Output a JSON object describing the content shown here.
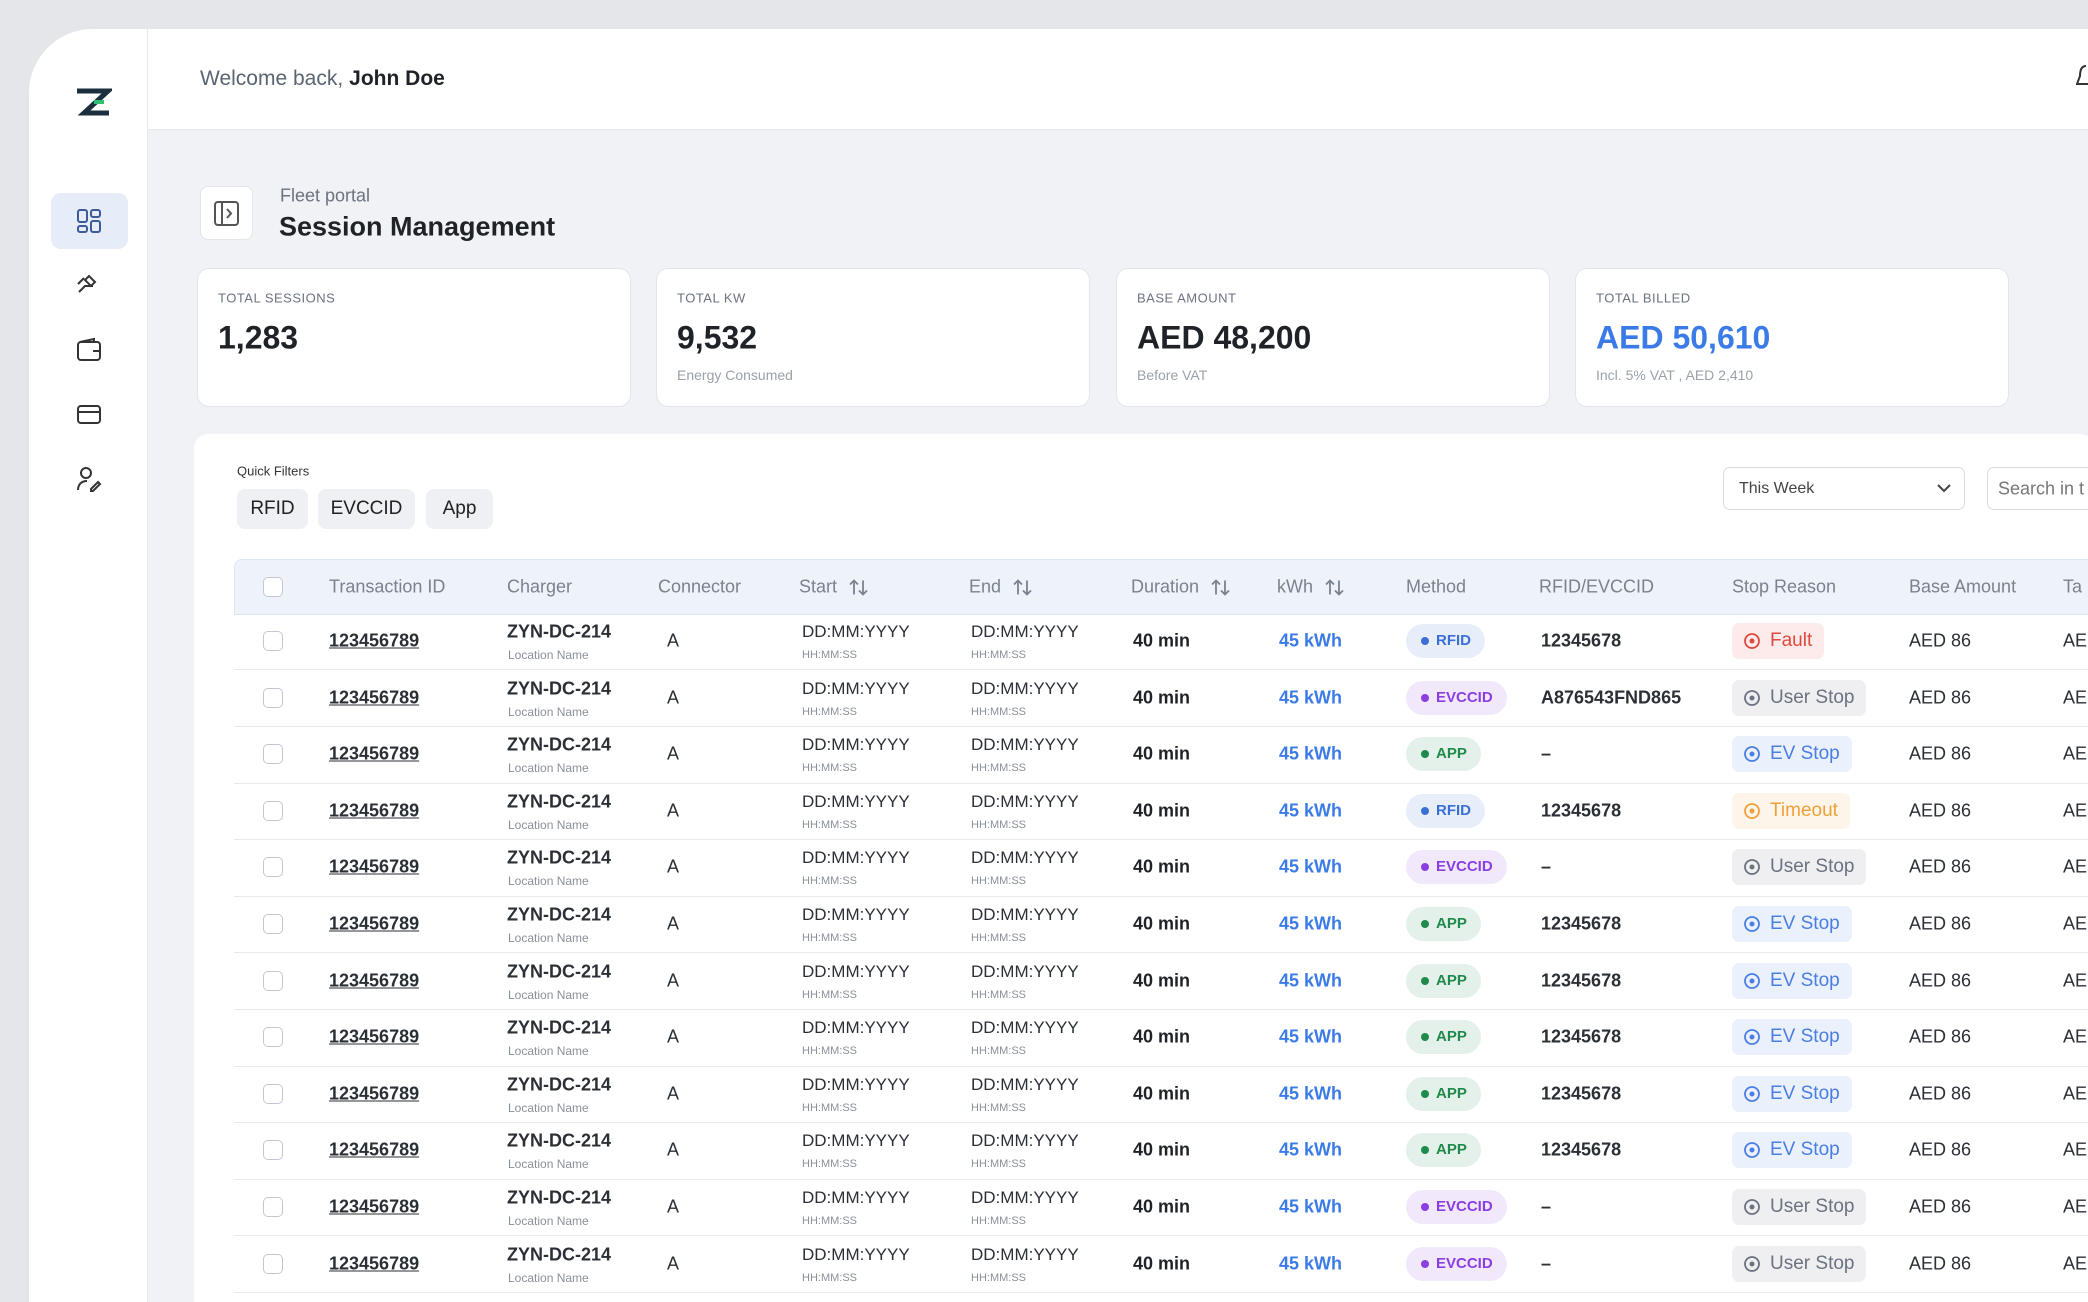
{
  "header": {
    "welcome": "Welcome back,",
    "user": "John Doe"
  },
  "page": {
    "breadcrumb": "Fleet portal",
    "title": "Session Management"
  },
  "stats": [
    {
      "label": "TOTAL SESSIONS",
      "value": "1,283",
      "color": "#1f2328"
    },
    {
      "label": "TOTAL KW",
      "value": "9,532",
      "note": "Energy Consumed",
      "color": "#1f2328"
    },
    {
      "label": "BASE AMOUNT",
      "value": "AED 48,200",
      "note": "Before VAT",
      "color": "#1f2328"
    },
    {
      "label": "TOTAL BILLED",
      "value": "AED 50,610",
      "note": "Incl. 5% VAT , AED 2,410",
      "color": "#3b7be8"
    }
  ],
  "filters": {
    "label": "Quick Filters",
    "chips": [
      "RFID",
      "EVCCID",
      "App"
    ],
    "period": "This Week",
    "search": "Search in t"
  },
  "table": {
    "columns": [
      {
        "label": "Transaction ID",
        "sortable": false
      },
      {
        "label": "Charger",
        "sortable": false
      },
      {
        "label": "Connector",
        "sortable": false
      },
      {
        "label": "Start",
        "sortable": true
      },
      {
        "label": "End",
        "sortable": true
      },
      {
        "label": "Duration",
        "sortable": true
      },
      {
        "label": "kWh",
        "sortable": true
      },
      {
        "label": "Method",
        "sortable": false
      },
      {
        "label": "RFID/EVCCID",
        "sortable": false
      },
      {
        "label": "Stop Reason",
        "sortable": false
      },
      {
        "label": "Base Amount",
        "sortable": false
      },
      {
        "label": "Ta",
        "sortable": false
      }
    ],
    "rows": [
      {
        "id": "123456789",
        "charger": "ZYN-DC-214",
        "location": "Location Name",
        "connector": "A",
        "start_date": "DD:MM:YYYY",
        "start_time": "HH:MM:SS",
        "end_date": "DD:MM:YYYY",
        "end_time": "HH:MM:SS",
        "duration": "40 min",
        "kwh": "45 kWh",
        "method": {
          "text": "RFID",
          "color": "#3b6fd8"
        },
        "rfid": "12345678",
        "stop_reason": {
          "text": "Fault",
          "color": "#e0483e"
        },
        "base_amount": "AED 86",
        "tax": "AE"
      },
      {
        "id": "123456789",
        "charger": "ZYN-DC-214",
        "location": "Location Name",
        "connector": "A",
        "start_date": "DD:MM:YYYY",
        "start_time": "HH:MM:SS",
        "end_date": "DD:MM:YYYY",
        "end_time": "HH:MM:SS",
        "duration": "40 min",
        "kwh": "45 kWh",
        "method": {
          "text": "EVCCID",
          "color": "#8a3fe0"
        },
        "rfid": "A876543FND865",
        "stop_reason": {
          "text": "User Stop",
          "color": "#6b7280"
        },
        "base_amount": "AED 86",
        "tax": "AE"
      },
      {
        "id": "123456789",
        "charger": "ZYN-DC-214",
        "location": "Location Name",
        "connector": "A",
        "start_date": "DD:MM:YYYY",
        "start_time": "HH:MM:SS",
        "end_date": "DD:MM:YYYY",
        "end_time": "HH:MM:SS",
        "duration": "40 min",
        "kwh": "45 kWh",
        "method": {
          "text": "APP",
          "color": "#1f8a4c"
        },
        "rfid": "–",
        "stop_reason": {
          "text": "EV Stop",
          "color": "#4a7ee0"
        },
        "base_amount": "AED 86",
        "tax": "AE"
      },
      {
        "id": "123456789",
        "charger": "ZYN-DC-214",
        "location": "Location Name",
        "connector": "A",
        "start_date": "DD:MM:YYYY",
        "start_time": "HH:MM:SS",
        "end_date": "DD:MM:YYYY",
        "end_time": "HH:MM:SS",
        "duration": "40 min",
        "kwh": "45 kWh",
        "method": {
          "text": "RFID",
          "color": "#3b6fd8"
        },
        "rfid": "12345678",
        "stop_reason": {
          "text": "Timeout",
          "color": "#f0a03a"
        },
        "base_amount": "AED 86",
        "tax": "AE"
      },
      {
        "id": "123456789",
        "charger": "ZYN-DC-214",
        "location": "Location Name",
        "connector": "A",
        "start_date": "DD:MM:YYYY",
        "start_time": "HH:MM:SS",
        "end_date": "DD:MM:YYYY",
        "end_time": "HH:MM:SS",
        "duration": "40 min",
        "kwh": "45 kWh",
        "method": {
          "text": "EVCCID",
          "color": "#8a3fe0"
        },
        "rfid": "–",
        "stop_reason": {
          "text": "User Stop",
          "color": "#6b7280"
        },
        "base_amount": "AED 86",
        "tax": "AE"
      },
      {
        "id": "123456789",
        "charger": "ZYN-DC-214",
        "location": "Location Name",
        "connector": "A",
        "start_date": "DD:MM:YYYY",
        "start_time": "HH:MM:SS",
        "end_date": "DD:MM:YYYY",
        "end_time": "HH:MM:SS",
        "duration": "40 min",
        "kwh": "45 kWh",
        "method": {
          "text": "APP",
          "color": "#1f8a4c"
        },
        "rfid": "12345678",
        "stop_reason": {
          "text": "EV Stop",
          "color": "#4a7ee0"
        },
        "base_amount": "AED 86",
        "tax": "AE"
      },
      {
        "id": "123456789",
        "charger": "ZYN-DC-214",
        "location": "Location Name",
        "connector": "A",
        "start_date": "DD:MM:YYYY",
        "start_time": "HH:MM:SS",
        "end_date": "DD:MM:YYYY",
        "end_time": "HH:MM:SS",
        "duration": "40 min",
        "kwh": "45 kWh",
        "method": {
          "text": "APP",
          "color": "#1f8a4c"
        },
        "rfid": "12345678",
        "stop_reason": {
          "text": "EV Stop",
          "color": "#4a7ee0"
        },
        "base_amount": "AED 86",
        "tax": "AE"
      },
      {
        "id": "123456789",
        "charger": "ZYN-DC-214",
        "location": "Location Name",
        "connector": "A",
        "start_date": "DD:MM:YYYY",
        "start_time": "HH:MM:SS",
        "end_date": "DD:MM:YYYY",
        "end_time": "HH:MM:SS",
        "duration": "40 min",
        "kwh": "45 kWh",
        "method": {
          "text": "APP",
          "color": "#1f8a4c"
        },
        "rfid": "12345678",
        "stop_reason": {
          "text": "EV Stop",
          "color": "#4a7ee0"
        },
        "base_amount": "AED 86",
        "tax": "AE"
      },
      {
        "id": "123456789",
        "charger": "ZYN-DC-214",
        "location": "Location Name",
        "connector": "A",
        "start_date": "DD:MM:YYYY",
        "start_time": "HH:MM:SS",
        "end_date": "DD:MM:YYYY",
        "end_time": "HH:MM:SS",
        "duration": "40 min",
        "kwh": "45 kWh",
        "method": {
          "text": "APP",
          "color": "#1f8a4c"
        },
        "rfid": "12345678",
        "stop_reason": {
          "text": "EV Stop",
          "color": "#4a7ee0"
        },
        "base_amount": "AED 86",
        "tax": "AE"
      },
      {
        "id": "123456789",
        "charger": "ZYN-DC-214",
        "location": "Location Name",
        "connector": "A",
        "start_date": "DD:MM:YYYY",
        "start_time": "HH:MM:SS",
        "end_date": "DD:MM:YYYY",
        "end_time": "HH:MM:SS",
        "duration": "40 min",
        "kwh": "45 kWh",
        "method": {
          "text": "APP",
          "color": "#1f8a4c"
        },
        "rfid": "12345678",
        "stop_reason": {
          "text": "EV Stop",
          "color": "#4a7ee0"
        },
        "base_amount": "AED 86",
        "tax": "AE"
      },
      {
        "id": "123456789",
        "charger": "ZYN-DC-214",
        "location": "Location Name",
        "connector": "A",
        "start_date": "DD:MM:YYYY",
        "start_time": "HH:MM:SS",
        "end_date": "DD:MM:YYYY",
        "end_time": "HH:MM:SS",
        "duration": "40 min",
        "kwh": "45 kWh",
        "method": {
          "text": "EVCCID",
          "color": "#8a3fe0"
        },
        "rfid": "–",
        "stop_reason": {
          "text": "User Stop",
          "color": "#6b7280"
        },
        "base_amount": "AED 86",
        "tax": "AE"
      },
      {
        "id": "123456789",
        "charger": "ZYN-DC-214",
        "location": "Location Name",
        "connector": "A",
        "start_date": "DD:MM:YYYY",
        "start_time": "HH:MM:SS",
        "end_date": "DD:MM:YYYY",
        "end_time": "HH:MM:SS",
        "duration": "40 min",
        "kwh": "45 kWh",
        "method": {
          "text": "EVCCID",
          "color": "#8a3fe0"
        },
        "rfid": "–",
        "stop_reason": {
          "text": "User Stop",
          "color": "#6b7280"
        },
        "base_amount": "AED 86",
        "tax": "AE"
      }
    ]
  }
}
